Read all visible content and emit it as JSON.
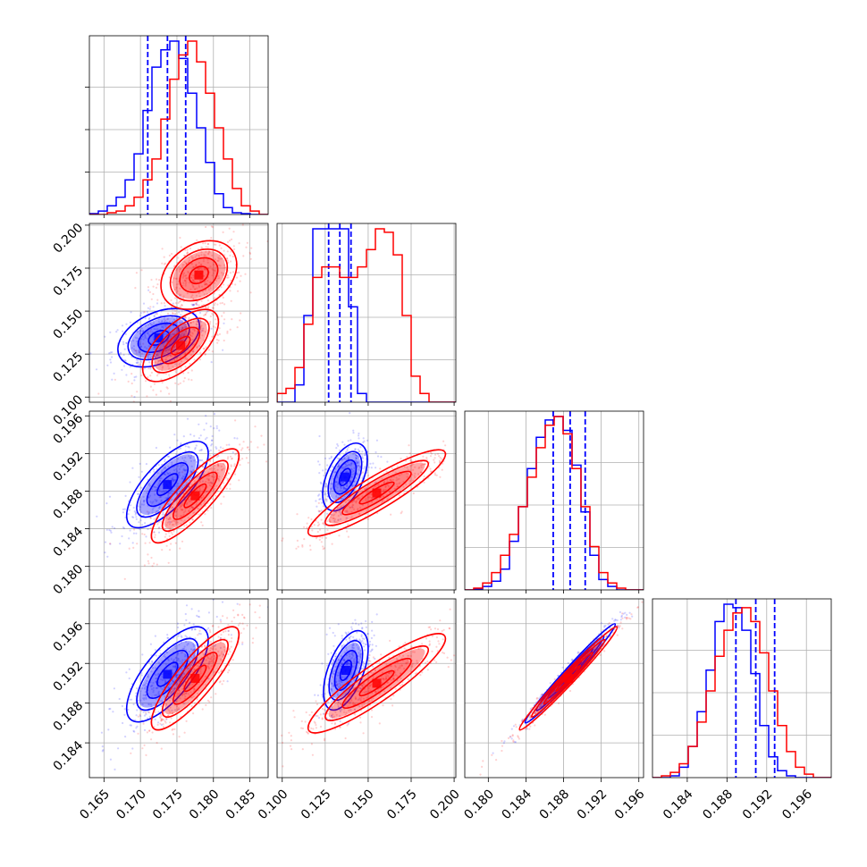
{
  "chart_data": {
    "type": "corner",
    "grid": true,
    "parameters": [
      {
        "index": 0,
        "range": [
          0.163,
          0.1875
        ],
        "ticks": [
          "0.165",
          "0.170",
          "0.175",
          "0.180",
          "0.185"
        ]
      },
      {
        "index": 1,
        "range": [
          0.097,
          0.201
        ],
        "ticks": [
          "0.100",
          "0.125",
          "0.150",
          "0.175",
          "0.200"
        ]
      },
      {
        "index": 2,
        "range": [
          0.1775,
          0.1965
        ],
        "ticks": [
          "0.180",
          "0.184",
          "0.188",
          "0.192",
          "0.196"
        ]
      },
      {
        "index": 3,
        "range": [
          0.1805,
          0.1985
        ],
        "ticks": [
          "0.184",
          "0.188",
          "0.192",
          "0.196"
        ]
      }
    ],
    "series": [
      {
        "color": "#0000ff",
        "quantiles": [
          [
            0.171,
            0.1737,
            0.1762
          ],
          [
            0.127,
            0.1335,
            0.14
          ],
          [
            0.1869,
            0.1887,
            0.1903
          ],
          [
            0.1889,
            0.1909,
            0.1928
          ]
        ],
        "histograms": [
          [
            0.005,
            0.02,
            0.05,
            0.1,
            0.2,
            0.35,
            0.6,
            0.85,
            0.95,
            1.0,
            0.9,
            0.7,
            0.5,
            0.3,
            0.12,
            0.04,
            0.01,
            0.005,
            0,
            0
          ],
          [
            0,
            0,
            0.1,
            0.5,
            1.0,
            1.0,
            1.0,
            1.0,
            0.55,
            0.05,
            0,
            0,
            0,
            0,
            0,
            0,
            0,
            0,
            0,
            0
          ],
          [
            0,
            0.005,
            0.02,
            0.05,
            0.12,
            0.28,
            0.48,
            0.7,
            0.88,
            0.98,
            1.0,
            0.92,
            0.72,
            0.45,
            0.2,
            0.06,
            0.02,
            0,
            0,
            0
          ],
          [
            0,
            0,
            0.01,
            0.06,
            0.18,
            0.38,
            0.62,
            0.9,
            1.0,
            0.98,
            0.85,
            0.6,
            0.3,
            0.12,
            0.04,
            0.01,
            0,
            0,
            0,
            0
          ]
        ]
      },
      {
        "color": "#ff0000",
        "quantiles": [],
        "histograms": [
          [
            0,
            0,
            0.01,
            0.02,
            0.05,
            0.1,
            0.2,
            0.32,
            0.55,
            0.78,
            0.92,
            1.0,
            0.88,
            0.7,
            0.5,
            0.32,
            0.15,
            0.05,
            0.02,
            0
          ],
          [
            0.05,
            0.08,
            0.2,
            0.45,
            0.72,
            0.78,
            0.78,
            0.72,
            0.72,
            0.78,
            0.88,
            1.0,
            0.98,
            0.85,
            0.5,
            0.15,
            0.05,
            0,
            0,
            0
          ],
          [
            0,
            0.01,
            0.04,
            0.1,
            0.2,
            0.32,
            0.48,
            0.65,
            0.82,
            0.95,
            1.0,
            0.9,
            0.7,
            0.48,
            0.25,
            0.1,
            0.04,
            0.01,
            0,
            0
          ],
          [
            0,
            0.01,
            0.03,
            0.08,
            0.18,
            0.32,
            0.5,
            0.7,
            0.85,
            0.95,
            0.98,
            0.9,
            0.72,
            0.5,
            0.3,
            0.15,
            0.06,
            0.02,
            0,
            0
          ]
        ]
      }
    ],
    "pairs": [
      {
        "x": 0,
        "y": 1,
        "components": [
          {
            "series": 0,
            "center": [
              0.1725,
              0.1345
            ],
            "sigma": [
              0.0028,
              0.0085
            ],
            "rho": 0.4
          },
          {
            "series": 1,
            "center": [
              0.178,
              0.171
            ],
            "sigma": [
              0.0026,
              0.01
            ],
            "rho": 0.3
          },
          {
            "series": 1,
            "center": [
              0.1755,
              0.13
            ],
            "sigma": [
              0.0026,
              0.0105
            ],
            "rho": 0.65
          }
        ]
      },
      {
        "x": 0,
        "y": 2,
        "components": [
          {
            "series": 0,
            "center": [
              0.1737,
              0.1887
            ],
            "sigma": [
              0.0028,
              0.0023
            ],
            "rho": 0.72
          },
          {
            "series": 1,
            "center": [
              0.1775,
              0.1875
            ],
            "sigma": [
              0.003,
              0.0025
            ],
            "rho": 0.85
          }
        ]
      },
      {
        "x": 1,
        "y": 2,
        "components": [
          {
            "series": 0,
            "center": [
              0.1365,
              0.1895
            ],
            "sigma": [
              0.0065,
              0.0018
            ],
            "rho": 0.5
          },
          {
            "series": 1,
            "center": [
              0.155,
              0.1878
            ],
            "sigma": [
              0.02,
              0.0023
            ],
            "rho": 0.9
          }
        ]
      },
      {
        "x": 0,
        "y": 3,
        "components": [
          {
            "series": 0,
            "center": [
              0.1737,
              0.1909
            ],
            "sigma": [
              0.0028,
              0.0024
            ],
            "rho": 0.72
          },
          {
            "series": 1,
            "center": [
              0.1775,
              0.1905
            ],
            "sigma": [
              0.003,
              0.0026
            ],
            "rho": 0.85
          }
        ]
      },
      {
        "x": 1,
        "y": 3,
        "components": [
          {
            "series": 0,
            "center": [
              0.137,
              0.1913
            ],
            "sigma": [
              0.0065,
              0.002
            ],
            "rho": 0.55
          },
          {
            "series": 1,
            "center": [
              0.155,
              0.19
            ],
            "sigma": [
              0.02,
              0.0025
            ],
            "rho": 0.9
          }
        ]
      },
      {
        "x": 2,
        "y": 3,
        "components": [
          {
            "series": 0,
            "center": [
              0.1887,
              0.191
            ],
            "sigma": [
              0.0024,
              0.0025
            ],
            "rho": 0.985
          },
          {
            "series": 1,
            "center": [
              0.1885,
              0.1905
            ],
            "sigma": [
              0.0026,
              0.0026
            ],
            "rho": 0.985
          }
        ]
      }
    ]
  }
}
